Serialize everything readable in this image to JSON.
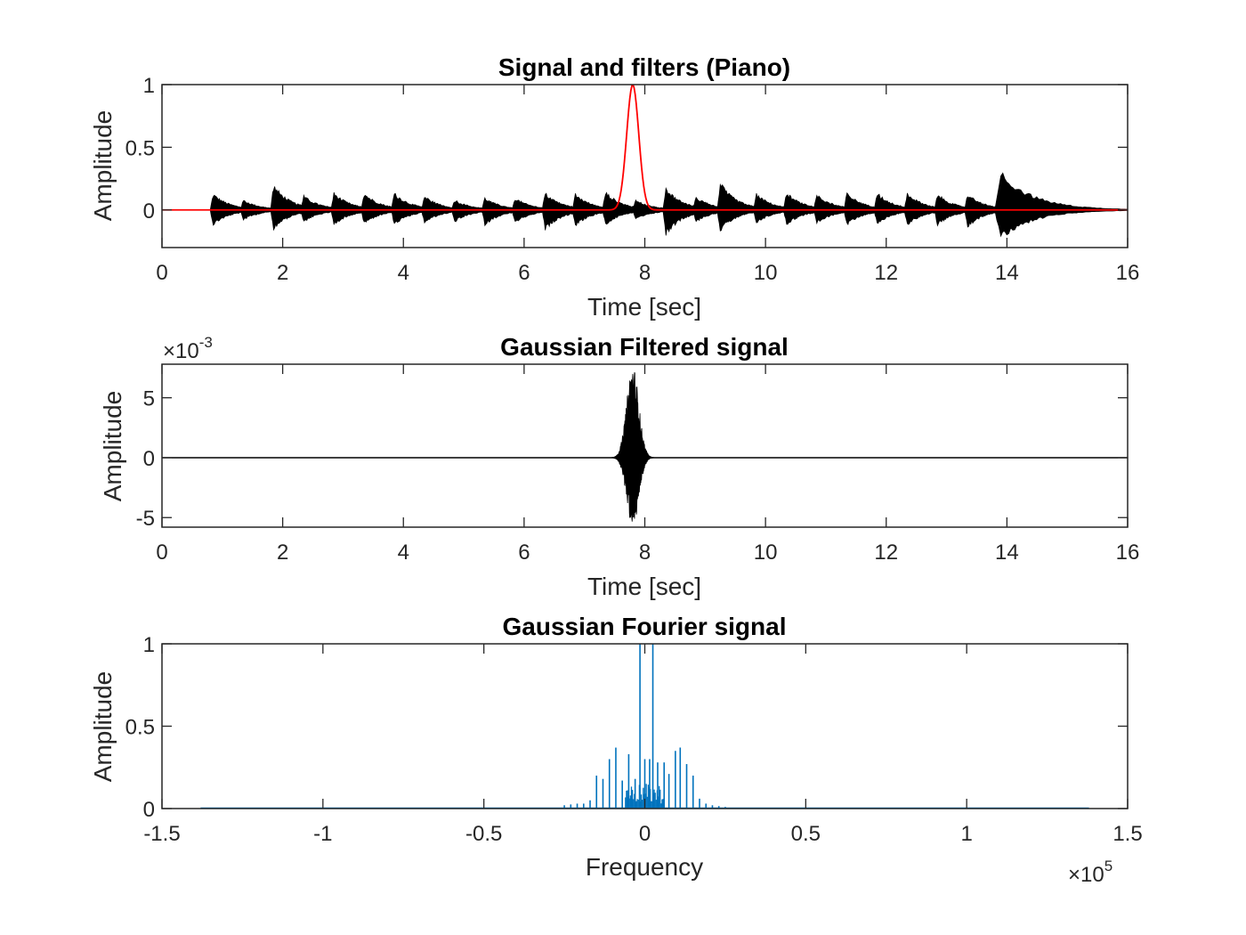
{
  "chart_data": [
    {
      "type": "line",
      "title": "Signal and filters (Piano)",
      "xlabel": "Time [sec]",
      "ylabel": "Amplitude",
      "xlim": [
        0,
        16
      ],
      "ylim": [
        -0.3,
        1
      ],
      "xticks": [
        0,
        2,
        4,
        6,
        8,
        10,
        12,
        14,
        16
      ],
      "xtick_labels": [
        "0",
        "2",
        "4",
        "6",
        "8",
        "10",
        "12",
        "14",
        "16"
      ],
      "yticks": [
        0,
        0.5,
        1
      ],
      "ytick_labels": [
        "0",
        "0.5",
        "1"
      ],
      "grid": false,
      "series": [
        {
          "kind": "envelope",
          "color": "#000000",
          "decay": 0.28,
          "notes": [
            {
              "t": 0.8,
              "pos": 0.16,
              "neg": -0.15
            },
            {
              "t": 1.3,
              "pos": 0.1,
              "neg": -0.1
            },
            {
              "t": 1.8,
              "pos": 0.25,
              "neg": -0.19
            },
            {
              "t": 2.3,
              "pos": 0.14,
              "neg": -0.12
            },
            {
              "t": 2.8,
              "pos": 0.17,
              "neg": -0.15
            },
            {
              "t": 3.3,
              "pos": 0.17,
              "neg": -0.14
            },
            {
              "t": 3.8,
              "pos": 0.17,
              "neg": -0.15
            },
            {
              "t": 4.3,
              "pos": 0.14,
              "neg": -0.13
            },
            {
              "t": 4.8,
              "pos": 0.1,
              "neg": -0.12
            },
            {
              "t": 5.3,
              "pos": 0.12,
              "neg": -0.15
            },
            {
              "t": 5.8,
              "pos": 0.12,
              "neg": -0.13
            },
            {
              "t": 6.3,
              "pos": 0.17,
              "neg": -0.2
            },
            {
              "t": 6.8,
              "pos": 0.16,
              "neg": -0.16
            },
            {
              "t": 7.3,
              "pos": 0.18,
              "neg": -0.15
            },
            {
              "t": 7.8,
              "pos": 0.1,
              "neg": -0.1
            },
            {
              "t": 8.3,
              "pos": 0.22,
              "neg": -0.25
            },
            {
              "t": 8.8,
              "pos": 0.13,
              "neg": -0.12
            },
            {
              "t": 9.2,
              "pos": 0.27,
              "neg": -0.21
            },
            {
              "t": 9.8,
              "pos": 0.16,
              "neg": -0.13
            },
            {
              "t": 10.3,
              "pos": 0.17,
              "neg": -0.15
            },
            {
              "t": 10.8,
              "pos": 0.16,
              "neg": -0.14
            },
            {
              "t": 11.3,
              "pos": 0.17,
              "neg": -0.15
            },
            {
              "t": 11.8,
              "pos": 0.17,
              "neg": -0.14
            },
            {
              "t": 12.3,
              "pos": 0.17,
              "neg": -0.15
            },
            {
              "t": 12.8,
              "pos": 0.16,
              "neg": -0.15
            },
            {
              "t": 13.3,
              "pos": 0.16,
              "neg": -0.17
            },
            {
              "t": 13.8,
              "pos": 0.38,
              "neg": -0.29,
              "decay": 0.55
            }
          ]
        },
        {
          "kind": "gaussian",
          "color": "#ff0000",
          "center": 7.8,
          "width": 0.1,
          "amplitude": 1
        }
      ]
    },
    {
      "type": "line",
      "title": "Gaussian Filtered signal",
      "xlabel": "Time [sec]",
      "ylabel": "Amplitude",
      "xlim": [
        0,
        16
      ],
      "ylim": [
        -0.0058,
        0.0078
      ],
      "xticks": [
        0,
        2,
        4,
        6,
        8,
        10,
        12,
        14,
        16
      ],
      "xtick_labels": [
        "0",
        "2",
        "4",
        "6",
        "8",
        "10",
        "12",
        "14",
        "16"
      ],
      "yticks": [
        -0.005,
        0,
        0.005
      ],
      "ytick_labels": [
        "-5",
        "0",
        "5"
      ],
      "y_exponent": {
        "base": "×10",
        "power": "-3"
      },
      "grid": false,
      "series": [
        {
          "kind": "burst",
          "color": "#000000",
          "center": 7.8,
          "width": 0.1,
          "peak_pos": 0.0077,
          "peak_neg": -0.0058
        }
      ]
    },
    {
      "type": "line",
      "title": "Gaussian Fourier signal",
      "xlabel": "Frequency",
      "ylabel": "Amplitude",
      "xlim": [
        -150000,
        150000
      ],
      "ylim": [
        0,
        1
      ],
      "xticks": [
        -150000,
        -100000,
        -50000,
        0,
        50000,
        100000,
        150000
      ],
      "xtick_labels": [
        "-1.5",
        "-1",
        "-0.5",
        "0",
        "0.5",
        "1",
        "1.5"
      ],
      "yticks": [
        0,
        0.5,
        1
      ],
      "ytick_labels": [
        "0",
        "0.5",
        "1"
      ],
      "x_exponent": {
        "base": "×10",
        "power": "5"
      },
      "grid": false,
      "series": [
        {
          "kind": "spikes",
          "color": "#0072bd",
          "x_range": [
            -138000,
            138000
          ],
          "spikes": [
            {
              "x": -25000,
              "y": 0.02
            },
            {
              "x": -23000,
              "y": 0.025
            },
            {
              "x": -21000,
              "y": 0.03
            },
            {
              "x": -19000,
              "y": 0.03
            },
            {
              "x": -17000,
              "y": 0.05
            },
            {
              "x": -15000,
              "y": 0.2
            },
            {
              "x": -13000,
              "y": 0.18
            },
            {
              "x": -11000,
              "y": 0.3
            },
            {
              "x": -9000,
              "y": 0.37
            },
            {
              "x": -7000,
              "y": 0.17
            },
            {
              "x": -5000,
              "y": 0.33
            },
            {
              "x": -3000,
              "y": 0.18
            },
            {
              "x": -1500,
              "y": 1.0
            },
            {
              "x": 0,
              "y": 0.3
            },
            {
              "x": 1500,
              "y": 0.3
            },
            {
              "x": 2500,
              "y": 1.0
            },
            {
              "x": 4000,
              "y": 0.28
            },
            {
              "x": 6000,
              "y": 0.28
            },
            {
              "x": 7500,
              "y": 0.21
            },
            {
              "x": 9500,
              "y": 0.35
            },
            {
              "x": 11000,
              "y": 0.37
            },
            {
              "x": 13000,
              "y": 0.27
            },
            {
              "x": 15000,
              "y": 0.2
            },
            {
              "x": 17000,
              "y": 0.06
            },
            {
              "x": 19000,
              "y": 0.03
            },
            {
              "x": 21000,
              "y": 0.02
            },
            {
              "x": 23000,
              "y": 0.015
            },
            {
              "x": 25000,
              "y": 0.01
            }
          ]
        }
      ]
    }
  ]
}
